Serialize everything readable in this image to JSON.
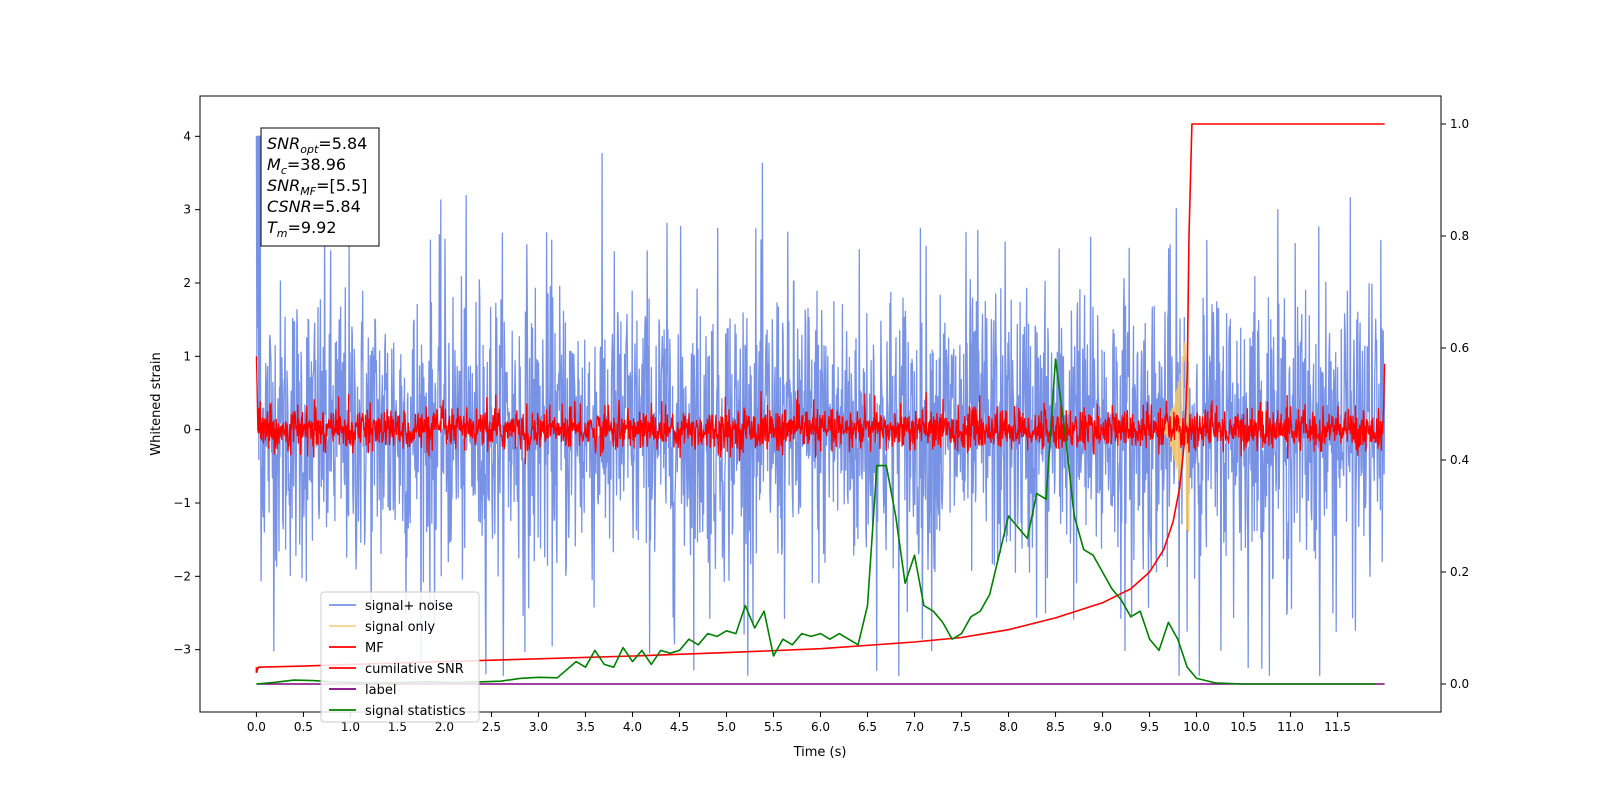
{
  "chart_data": {
    "type": "line",
    "xlabel": "Time (s)",
    "ylabel": "Whitened strain",
    "xlim": [
      -0.6,
      12.6
    ],
    "ylim": [
      -3.85,
      4.55
    ],
    "y2lim": [
      -0.05,
      1.05
    ],
    "x_ticks": [
      0.0,
      0.5,
      1.0,
      1.5,
      2.0,
      2.5,
      3.0,
      3.5,
      4.0,
      4.5,
      5.0,
      5.5,
      6.0,
      6.5,
      7.0,
      7.5,
      8.0,
      8.5,
      9.0,
      9.5,
      10.0,
      10.5,
      11.0,
      11.5
    ],
    "x_tick_labels": [
      "0.0",
      "0.5",
      "1.0",
      "1.5",
      "2.0",
      "2.5",
      "3.0",
      "3.5",
      "4.0",
      "4.5",
      "5.0",
      "5.5",
      "6.0",
      "6.5",
      "7.0",
      "7.5",
      "8.0",
      "8.5",
      "9.0",
      "9.5",
      "10.0",
      "10.5",
      "11.0",
      "11.5"
    ],
    "y_ticks": [
      -3,
      -2,
      -1,
      0,
      1,
      2,
      3,
      4
    ],
    "y_tick_labels": [
      "−3",
      "−2",
      "−1",
      "0",
      "1",
      "2",
      "3",
      "4"
    ],
    "y2_ticks": [
      0.0,
      0.2,
      0.4,
      0.6,
      0.8,
      1.0
    ],
    "y2_tick_labels": [
      "0.0",
      "0.2",
      "0.4",
      "0.6",
      "0.8",
      "1.0"
    ],
    "grid": false,
    "legend_position": "lower-left",
    "annotation": {
      "lines": [
        {
          "base": "SNR",
          "sub": "opt",
          "value": "=5.84"
        },
        {
          "base": "M",
          "sub": "c",
          "value": "=38.96"
        },
        {
          "base": "SNR",
          "sub": "MF",
          "value": "=[5.5]"
        },
        {
          "base": "CSNR",
          "sub": "",
          "value": "=5.84"
        },
        {
          "base": "T",
          "sub": "m",
          "value": "=9.92"
        }
      ]
    },
    "series": [
      {
        "name": "signal+ noise",
        "color": "#7893e6",
        "axis": "left",
        "kind": "noise",
        "amplitude_band": [
          -2.5,
          2.5
        ],
        "peaks": [
          4.1,
          -3.4
        ],
        "t_range": [
          0.0,
          12.0
        ]
      },
      {
        "name": "signal only",
        "color": "#f5c86e",
        "axis": "left",
        "kind": "chirp",
        "t_range": [
          9.6,
          9.92
        ],
        "amplitude_max": 1.6
      },
      {
        "name": "MF",
        "color": "#ff0000",
        "axis": "left",
        "kind": "noise",
        "amplitude_band": [
          -0.3,
          0.45
        ],
        "t_range": [
          0.0,
          12.0
        ]
      },
      {
        "name": "cumilative SNR",
        "color": "#ff0000",
        "axis": "right",
        "x": [
          0.0,
          0.02,
          0.5,
          1.0,
          2.0,
          3.0,
          4.0,
          5.0,
          6.0,
          7.0,
          7.5,
          8.0,
          8.5,
          9.0,
          9.3,
          9.5,
          9.65,
          9.75,
          9.82,
          9.87,
          9.9,
          9.92,
          9.95,
          10.5,
          11.0,
          11.5,
          12.0
        ],
        "y": [
          0.02,
          0.03,
          0.032,
          0.035,
          0.04,
          0.045,
          0.05,
          0.056,
          0.063,
          0.075,
          0.083,
          0.097,
          0.118,
          0.145,
          0.17,
          0.2,
          0.24,
          0.29,
          0.35,
          0.43,
          0.55,
          0.8,
          1.0,
          1.0,
          1.0,
          1.0,
          1.0
        ]
      },
      {
        "name": "label",
        "color": "#800080",
        "axis": "right",
        "x": [
          0.0,
          12.0
        ],
        "y": [
          0.0,
          0.0
        ]
      },
      {
        "name": "signal statistics",
        "color": "#008000",
        "axis": "right",
        "x": [
          0.0,
          0.2,
          0.4,
          0.6,
          0.8,
          1.0,
          1.2,
          1.4,
          1.6,
          1.8,
          2.0,
          2.2,
          2.4,
          2.6,
          2.8,
          3.0,
          3.2,
          3.4,
          3.5,
          3.6,
          3.7,
          3.8,
          3.9,
          4.0,
          4.1,
          4.2,
          4.3,
          4.4,
          4.5,
          4.6,
          4.7,
          4.8,
          4.9,
          5.0,
          5.1,
          5.2,
          5.3,
          5.4,
          5.5,
          5.6,
          5.7,
          5.8,
          5.9,
          6.0,
          6.1,
          6.2,
          6.3,
          6.4,
          6.5,
          6.6,
          6.7,
          6.8,
          6.9,
          7.0,
          7.1,
          7.2,
          7.3,
          7.4,
          7.5,
          7.6,
          7.7,
          7.8,
          7.9,
          8.0,
          8.1,
          8.2,
          8.3,
          8.4,
          8.5,
          8.6,
          8.7,
          8.8,
          8.9,
          9.0,
          9.1,
          9.2,
          9.3,
          9.4,
          9.5,
          9.6,
          9.7,
          9.8,
          9.9,
          10.0,
          10.2,
          10.5,
          11.0,
          11.5,
          11.9
        ],
        "y": [
          0.0,
          0.003,
          0.007,
          0.006,
          0.004,
          0.003,
          0.002,
          0.002,
          0.003,
          0.004,
          0.003,
          0.003,
          0.004,
          0.005,
          0.01,
          0.012,
          0.011,
          0.04,
          0.03,
          0.06,
          0.035,
          0.03,
          0.065,
          0.04,
          0.06,
          0.035,
          0.06,
          0.055,
          0.06,
          0.08,
          0.07,
          0.09,
          0.085,
          0.095,
          0.09,
          0.14,
          0.1,
          0.13,
          0.05,
          0.08,
          0.07,
          0.09,
          0.085,
          0.09,
          0.08,
          0.09,
          0.08,
          0.07,
          0.14,
          0.39,
          0.39,
          0.3,
          0.18,
          0.23,
          0.14,
          0.13,
          0.11,
          0.08,
          0.09,
          0.12,
          0.13,
          0.16,
          0.23,
          0.3,
          0.28,
          0.26,
          0.34,
          0.33,
          0.58,
          0.45,
          0.3,
          0.24,
          0.23,
          0.2,
          0.17,
          0.15,
          0.12,
          0.13,
          0.08,
          0.06,
          0.11,
          0.08,
          0.03,
          0.01,
          0.002,
          0.0,
          0.0,
          0.0,
          0.0
        ]
      }
    ]
  }
}
